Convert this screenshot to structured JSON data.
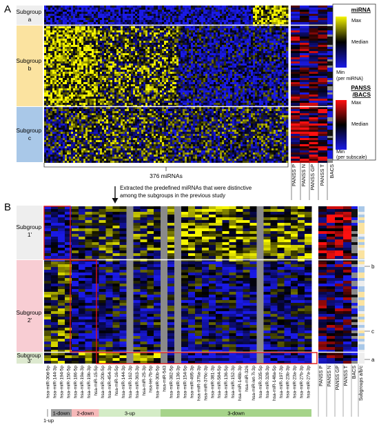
{
  "panel_a": {
    "letter": "A",
    "subgroups": [
      "a",
      "b",
      "c"
    ],
    "subgroup_word": "Subgroup",
    "mirna_count_label": "376 miRNAs",
    "panss_columns": [
      "PANSS P",
      "PANSS N",
      "PANSS GP",
      "PANSS T"
    ],
    "bacs_label": "BACS",
    "legend_mirna": {
      "title": "miRNA",
      "max": "Max",
      "median": "Median",
      "min": "Min",
      "note": "(per miRNA)"
    },
    "legend_panss": {
      "title_line1": "PANSS",
      "title_line2": "/BACS",
      "max": "Max",
      "median": "Median",
      "min": "Min",
      "note": "(per subscale)"
    }
  },
  "arrow_text": {
    "line1": "Extracted the predefined miRNAs that were distinctive",
    "line2": "among the subgroups in the previous study"
  },
  "panel_b": {
    "letter": "B",
    "subgroups": [
      "1'",
      "2'",
      "3'"
    ],
    "subgroup_word": "Subgroup",
    "mirnas": [
      "hsa-miR-30d-5p",
      "hsa-miR-144-3p",
      "hsa-miR-194-5p",
      "hsa-miR-150-5p",
      "hsa-miR-186-5p",
      "hsa-miR-19a-3p",
      "hsa-miR-19b-3p",
      "hsa-miR-15-5p",
      "hsa-miR-20b-5p",
      "hsa-miR-454-3p",
      "hsa-miR-16-5p",
      "hsa-miR-144-3p",
      "hsa-miR-162-3p",
      "hsa-miR-363-3p",
      "hsa-miR-25-3p",
      "hsa-let-7b-5p",
      "hsa-miR-30b-5p",
      "hsa-miR-543",
      "hsa-miR-382-5p",
      "hsa-miR-136-3p",
      "hsa-miR-154-5p",
      "hsa-miR-495-3p",
      "hsa-miR-376a-3p",
      "hsa-miR-376c-3p",
      "hsa-miR-381-3p",
      "hsa-miR-584-5p",
      "hsa-miR-136-5p",
      "hsa-miR-152-3p",
      "hsa-miR-148b-3p",
      "hsa-miR-326",
      "hsa-miR-let-7i-3p",
      "hsa-miR-335-5p",
      "hsa-miR-328-3p",
      "hsa-miR-148a-5p",
      "hsa-miR-197-3p",
      "hsa-miR-23b-3p",
      "hsa-miR-23a-3p",
      "hsa-miR-27b-3p",
      "hsa-miR-27a-3p"
    ],
    "panss_columns": [
      "PANSS P",
      "PANSS N",
      "PANSS GP",
      "PANSS T"
    ],
    "bacs_label": "BACS",
    "subgroup_col_label": "Subgroups a/b/c",
    "side_markers": [
      "b",
      "c",
      "a"
    ],
    "groups": [
      {
        "label": "1-up",
        "color": "#ffffff"
      },
      {
        "label": "1-down",
        "color": "#9e9e9e"
      },
      {
        "label": "2-down",
        "color": "#f6b9b9"
      },
      {
        "label": "3-up",
        "color": "#d4ecc6"
      },
      {
        "label": "3-down",
        "color": "#a6d48a"
      }
    ]
  },
  "colors": {
    "yellow": "#f5f500",
    "blue": "#1a1ae6",
    "black": "#000000",
    "grey": "#8a8a8a",
    "red": "#ff1010",
    "subgroup_a": "#eeeeee",
    "subgroup_b": "#fbe3a0",
    "subgroup_c": "#a9c8e8",
    "subgroup_1": "#eeeeee",
    "subgroup_2": "#f8cdd3",
    "subgroup_3": "#dde9cf"
  }
}
